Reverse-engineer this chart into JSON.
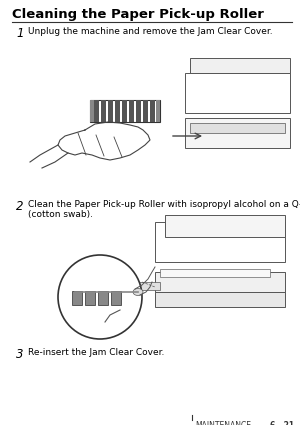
{
  "bg_color": "#ffffff",
  "title": "Cleaning the Paper Pick-up Roller",
  "title_fontsize": 9.5,
  "step1_num": "1",
  "step1_text": "Unplug the machine and remove the Jam Clear Cover.",
  "step2_num": "2",
  "step2_text": "Clean the Paper Pick-up Roller with isopropyl alcohol on a Q-tip\n(cotton swab).",
  "step3_num": "3",
  "step3_text": "Re-insert the Jam Clear Cover.",
  "footer_left": "| MAINTENANCE",
  "footer_right": "6 - 21",
  "text_color": "#000000",
  "gray_line": "#888888",
  "dark_gray": "#555555",
  "med_gray": "#888888",
  "light_gray": "#cccccc",
  "step_fontsize": 6.5,
  "footer_fontsize": 5.5,
  "num_fontsize": 8.5,
  "fig_width": 3.0,
  "fig_height": 4.25,
  "dpi": 100
}
